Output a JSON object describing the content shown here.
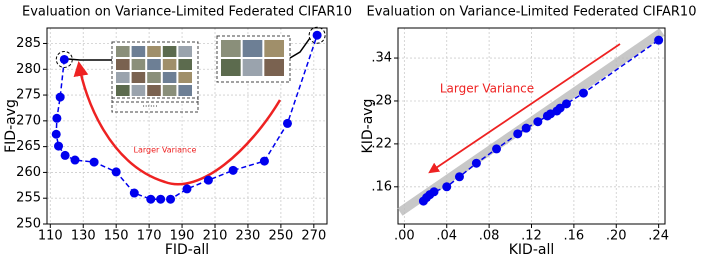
{
  "chart_data": [
    {
      "type": "line",
      "title": "Evaluation on Variance-Limited Federated CIFAR10",
      "x_label": "FID-all",
      "y_label": "FID-avg",
      "annotation": "Larger Variance",
      "image_caption": "......",
      "color": "#0000ee",
      "grid": true,
      "x": [
        118.5,
        116,
        114,
        113.6,
        115,
        119,
        125,
        136.6,
        150,
        161,
        171,
        177,
        183,
        193,
        206,
        221,
        240,
        254,
        272
      ],
      "values": [
        281.9,
        274.6,
        270.5,
        267.4,
        265.1,
        263.3,
        262.4,
        262.0,
        260.1,
        256.0,
        254.8,
        254.8,
        254.8,
        256.8,
        258.5,
        260.4,
        262.2,
        269.5,
        286.6
      ],
      "xlim": [
        108,
        278
      ],
      "ylim": [
        250,
        288
      ],
      "xticks": [
        110,
        130,
        150,
        170,
        190,
        210,
        230,
        250,
        270
      ],
      "yticks": [
        250,
        255,
        260,
        265,
        270,
        275,
        280,
        285
      ]
    },
    {
      "type": "line",
      "title": "Evaluation on Variance-Limited Federated CIFAR10",
      "x_label": "KID-all",
      "y_label": "KID-avg",
      "annotation": "Larger Variance",
      "color": "#0000ee",
      "grid": true,
      "x": [
        0.018,
        0.021,
        0.024,
        0.028,
        0.04,
        0.052,
        0.068,
        0.087,
        0.107,
        0.115,
        0.126,
        0.135,
        0.138,
        0.144,
        0.147,
        0.153,
        0.169,
        0.24
      ],
      "values": [
        0.14,
        0.145,
        0.149,
        0.153,
        0.16,
        0.174,
        0.193,
        0.213,
        0.234,
        0.242,
        0.251,
        0.259,
        0.262,
        0.266,
        0.27,
        0.276,
        0.291,
        0.365
      ],
      "xlim": [
        -0.006,
        0.246
      ],
      "ylim": [
        0.108,
        0.382
      ],
      "xticks": [
        {
          "value": 0,
          "label": ".00"
        },
        {
          "value": 0.04,
          "label": ".04"
        },
        {
          "value": 0.08,
          "label": ".08"
        },
        {
          "value": 0.12,
          "label": ".12"
        },
        {
          "value": 0.16,
          "label": ".16"
        },
        {
          "value": 0.2,
          "label": ".20"
        },
        {
          "value": 0.24,
          "label": ".24"
        }
      ],
      "yticks": [
        {
          "value": 0.16,
          "label": ".16"
        },
        {
          "value": 0.22,
          "label": ".22"
        },
        {
          "value": 0.28,
          "label": ".28"
        },
        {
          "value": 0.34,
          "label": ".34"
        }
      ]
    }
  ]
}
